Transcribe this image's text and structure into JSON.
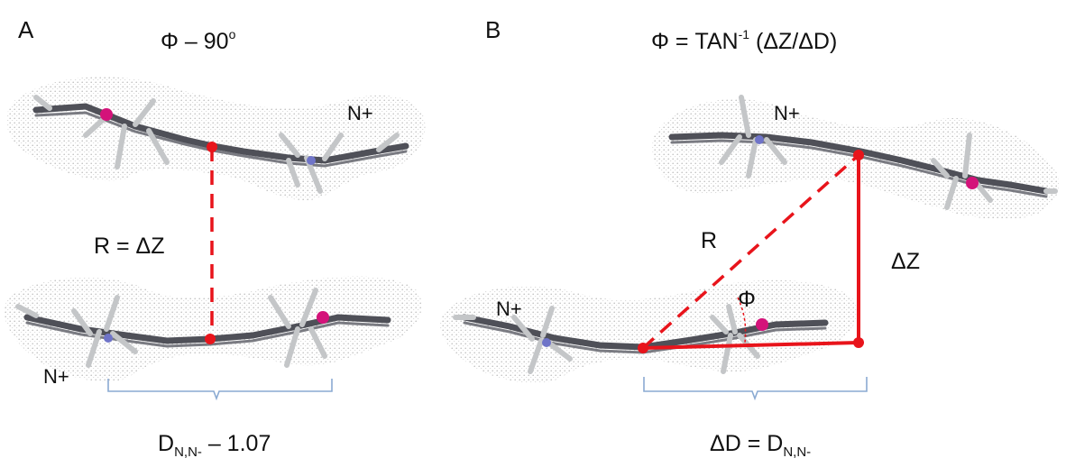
{
  "panel_a": {
    "letter": "A",
    "title": {
      "phi": "Φ",
      "rest": " – 90",
      "sup": "o"
    },
    "top_label": "N+",
    "bottom_label": "N+",
    "r_label": "R = ΔZ",
    "d_label": {
      "main": "D",
      "sub": "N,N-",
      "rest": " – 1.07"
    }
  },
  "panel_b": {
    "letter": "B",
    "title": {
      "pre": "Φ = TAN",
      "sup": "-1",
      "post": " (ΔZ/ΔD)"
    },
    "top_label": "N+",
    "bottom_label": "N+",
    "r_label": "R",
    "dz_label": "ΔZ",
    "phi_label": "Φ",
    "d_label": {
      "pre": "ΔD = D",
      "sub": "N,N-"
    }
  },
  "colors": {
    "annotation": "#e8141b",
    "bracket": "#8aaad2",
    "bond": "#4f5058",
    "hydrogen": "#c4c6c8",
    "nitrogen": "#6f74c8",
    "positive_center": "#d4137a",
    "surface": "#bcbcbc"
  }
}
